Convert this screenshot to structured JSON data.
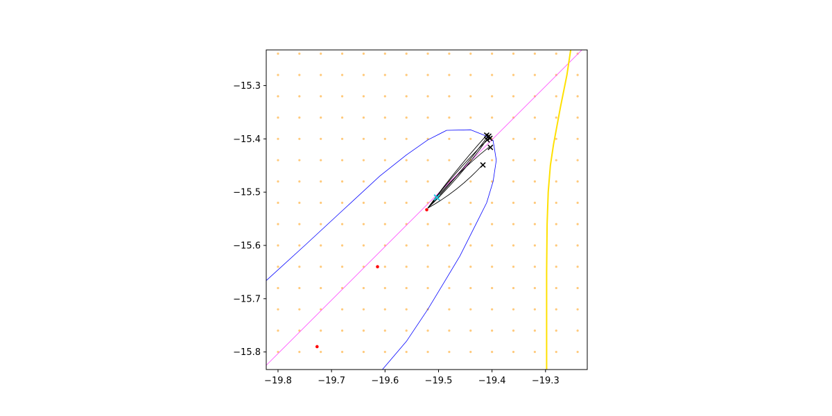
{
  "chart_data": {
    "type": "scatter",
    "title": "",
    "xlabel": "",
    "ylabel": "",
    "xlim": [
      -19.822,
      -19.222
    ],
    "ylim": [
      -15.833,
      -15.233
    ],
    "grid": false,
    "x_ticks": [
      -19.8,
      -19.7,
      -19.6,
      -19.5,
      -19.4,
      -19.3
    ],
    "x_tick_labels": [
      "−19.8",
      "−19.7",
      "−19.6",
      "−19.5",
      "−19.4",
      "−19.3"
    ],
    "y_ticks": [
      -15.3,
      -15.4,
      -15.5,
      -15.6,
      -15.7,
      -15.8
    ],
    "y_tick_labels": [
      "−15.3",
      "−15.4",
      "−15.5",
      "−15.6",
      "−15.7",
      "−15.8"
    ],
    "colors": {
      "grid_points": "#ffb74d",
      "boundary": "#0000ff",
      "diagonal": "#ff44ff",
      "yellow_curve": "#ffe000",
      "trajectories": "#000000",
      "red_points": "#ff0000",
      "start_marker": "#22c8e0",
      "end_markers": "#000000"
    },
    "series": [
      {
        "kind": "grid_points",
        "x": [
          -19.8,
          -19.76,
          -19.72,
          -19.68,
          -19.64,
          -19.6,
          -19.56,
          -19.52,
          -19.48,
          -19.44,
          -19.4,
          -19.36,
          -19.32,
          -19.28,
          -19.24
        ],
        "y": [
          -15.24,
          -15.28,
          -15.32,
          -15.36,
          -15.4,
          -15.44,
          -15.48,
          -15.52,
          -15.56,
          -15.6,
          -15.64,
          -15.68,
          -15.72,
          -15.76,
          -15.8
        ]
      },
      {
        "kind": "boundary",
        "x": [
          -19.822,
          -19.75,
          -19.68,
          -19.61,
          -19.56,
          -19.52,
          -19.485,
          -19.44,
          -19.415,
          -19.398,
          -19.392,
          -19.398,
          -19.41,
          -19.43,
          -19.46,
          -19.49,
          -19.52,
          -19.56,
          -19.605
        ],
        "y": [
          -15.666,
          -15.6,
          -15.535,
          -15.47,
          -15.43,
          -15.402,
          -15.384,
          -15.383,
          -15.393,
          -15.403,
          -15.44,
          -15.48,
          -15.52,
          -15.56,
          -15.62,
          -15.67,
          -15.72,
          -15.78,
          -15.833
        ]
      },
      {
        "kind": "diagonal",
        "x": [
          -19.822,
          -19.232
        ],
        "y": [
          -15.825,
          -15.233
        ]
      },
      {
        "kind": "yellow_curve",
        "x": [
          -19.298,
          -19.298,
          -19.298,
          -19.297,
          -19.295,
          -19.291,
          -19.285,
          -19.272,
          -19.26,
          -19.253
        ],
        "y": [
          -15.833,
          -15.75,
          -15.65,
          -15.56,
          -15.5,
          -15.45,
          -15.41,
          -15.34,
          -15.28,
          -15.233
        ]
      },
      {
        "kind": "trajectories",
        "start": [
          -19.52,
          -15.53
        ],
        "ends": [
          [
            -19.41,
            -15.393
          ],
          [
            -19.408,
            -15.395
          ],
          [
            -19.405,
            -15.398
          ],
          [
            -19.41,
            -15.402
          ],
          [
            -19.405,
            -15.415
          ],
          [
            -19.418,
            -15.449
          ]
        ]
      },
      {
        "kind": "red_points",
        "x": [
          -19.522,
          -19.614,
          -19.727
        ],
        "y": [
          -15.533,
          -15.64,
          -15.79
        ]
      },
      {
        "kind": "start_marker",
        "x": [
          -19.503
        ],
        "y": [
          -15.51
        ]
      },
      {
        "kind": "end_markers",
        "x": [
          -19.41,
          -19.406,
          -19.404,
          -19.409,
          -19.403,
          -19.417
        ],
        "y": [
          -15.393,
          -15.395,
          -15.399,
          -15.402,
          -15.416,
          -15.449
        ]
      }
    ]
  }
}
